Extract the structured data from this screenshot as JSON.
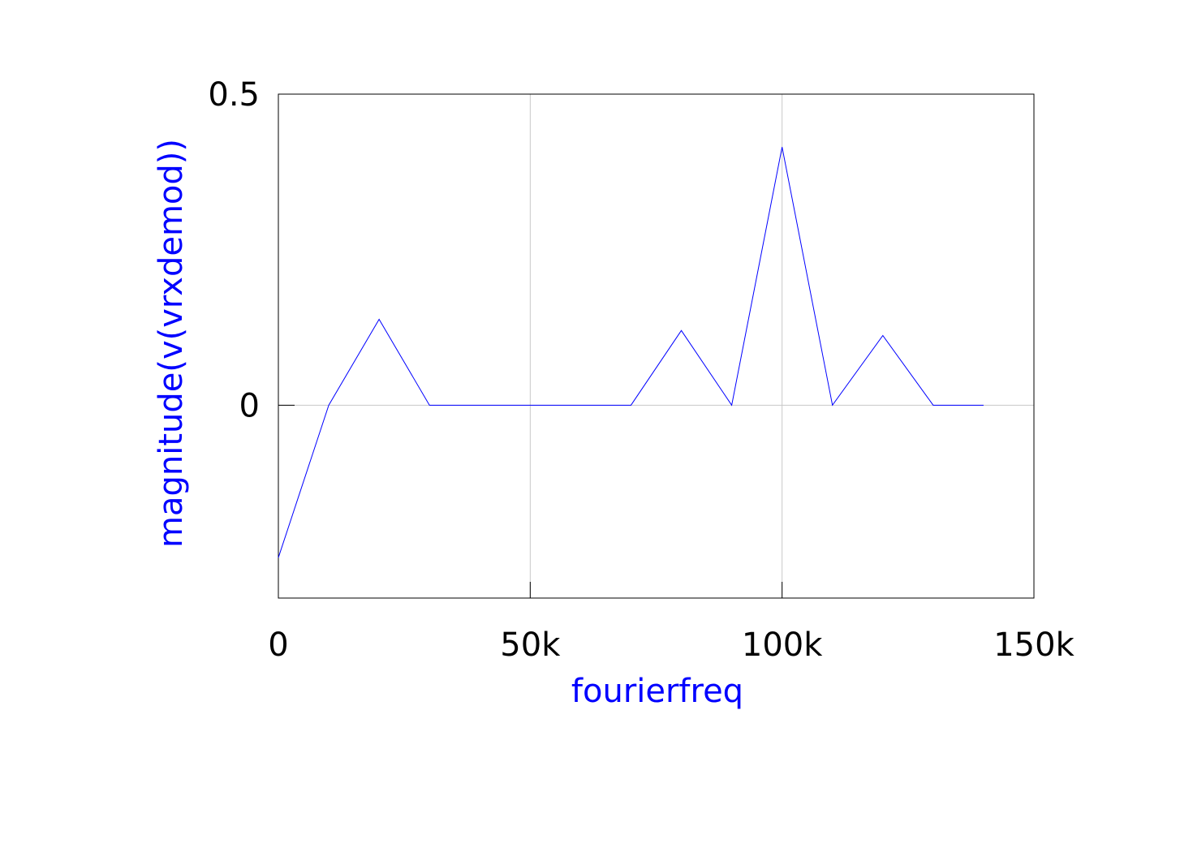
{
  "colors": {
    "series": "#0000ff",
    "axis_label": "#0000ff",
    "grid": "#c8c8c8",
    "frame": "#000000",
    "tick_text": "#000000"
  },
  "chart_data": {
    "type": "line",
    "title": "",
    "xlabel": "fourierfreq",
    "ylabel": "magnitude(v(vrxdemod))",
    "xlim": [
      0,
      150000
    ],
    "ylim": [
      -0.31,
      0.5
    ],
    "grid": true,
    "x_ticks": [
      0,
      50000,
      100000,
      150000
    ],
    "x_tick_labels": [
      "0",
      "50k",
      "100k",
      "150k"
    ],
    "y_ticks": [
      0,
      0.5
    ],
    "y_tick_labels": [
      "0",
      "0.5"
    ],
    "series": [
      {
        "x": [
          0,
          10000,
          20000,
          30000,
          40000,
          50000,
          60000,
          70000,
          80000,
          90000,
          100000,
          110000,
          120000,
          130000,
          140000
        ],
        "y": [
          -0.245,
          0.0,
          0.138,
          0.0,
          0.0,
          0.0,
          0.0,
          0.0,
          0.12,
          0.0,
          0.415,
          0.0,
          0.112,
          0.0,
          0.0
        ]
      }
    ]
  }
}
